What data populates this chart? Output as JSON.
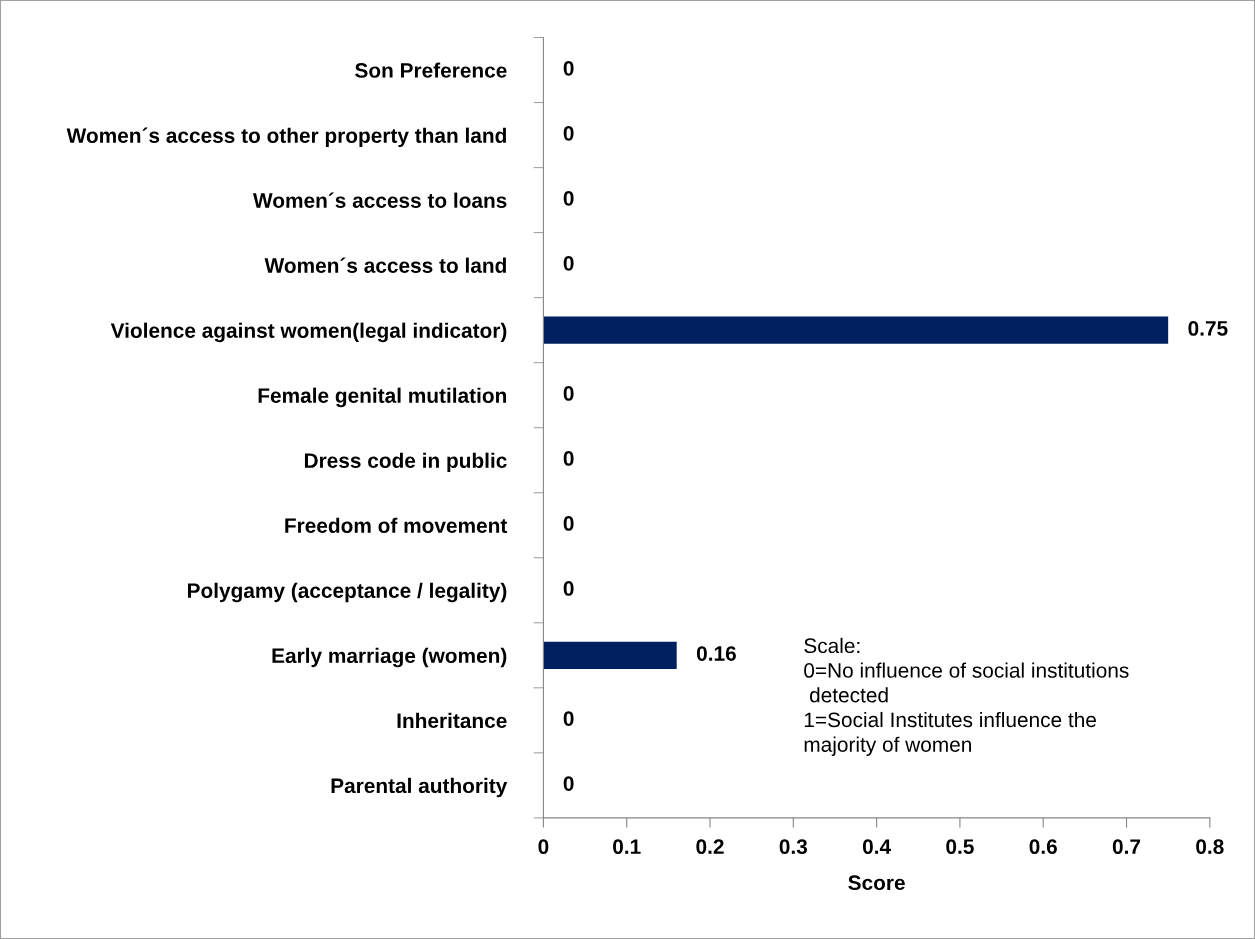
{
  "chart_data": {
    "type": "bar",
    "orientation": "horizontal",
    "categories": [
      "Son Preference",
      "Women´s access to other property than land",
      "Women´s access to loans",
      "Women´s access to land",
      "Violence against women(legal indicator)",
      "Female genital mutilation",
      "Dress code in public",
      "Freedom of movement",
      "Polygamy (acceptance / legality)",
      "Early marriage (women)",
      "Inheritance",
      "Parental authority"
    ],
    "values": [
      0,
      0,
      0,
      0,
      0.75,
      0,
      0,
      0,
      0,
      0.16,
      0,
      0
    ],
    "color": "#002060",
    "xlabel": "Score",
    "xlim": [
      0,
      0.8
    ],
    "xticks": [
      0,
      0.1,
      0.2,
      0.3,
      0.4,
      0.5,
      0.6,
      0.7,
      0.8
    ],
    "data_labels": true,
    "grid": false,
    "legend": false,
    "annotations": [
      "Scale:\n0=No influence of social institutions\n detected\n1=Social Institutes influence the\nmajority of women"
    ]
  }
}
